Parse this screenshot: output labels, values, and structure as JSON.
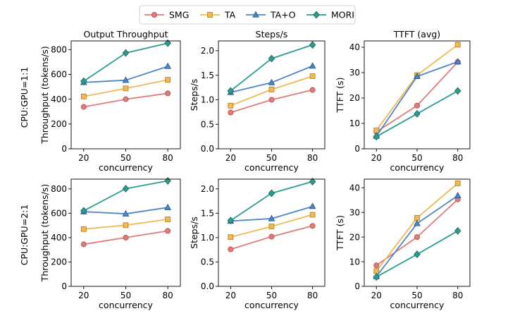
{
  "legend": {
    "entries": [
      {
        "name": "SMG",
        "color": "#e07b7b",
        "edge": "#b84a4a",
        "marker": "circle"
      },
      {
        "name": "TA",
        "color": "#f0b955",
        "edge": "#b07d1e",
        "marker": "square"
      },
      {
        "name": "TA+O",
        "color": "#4f87c6",
        "edge": "#27508a",
        "marker": "triangle"
      },
      {
        "name": "MORI",
        "color": "#2a9d8f",
        "edge": "#1b5f57",
        "marker": "diamond"
      }
    ],
    "placement": "top-center"
  },
  "row_labels": [
    "CPU:GPU=1:1",
    "CPU:GPU=2:1"
  ],
  "chart_data": [
    {
      "type": "line",
      "row": 0,
      "col": 0,
      "title": "Output Throughput",
      "xlabel": "concurrency",
      "ylabel": "Throughput (tokens/s)",
      "x": [
        "20",
        "50",
        "80"
      ],
      "ylim": [
        0,
        870
      ],
      "yticks": [
        0,
        200,
        400,
        600,
        800
      ],
      "series": [
        {
          "name": "SMG",
          "values": [
            338,
            400,
            447
          ]
        },
        {
          "name": "TA",
          "values": [
            422,
            487,
            556
          ]
        },
        {
          "name": "TA+O",
          "values": [
            535,
            553,
            665
          ]
        },
        {
          "name": "MORI",
          "values": [
            545,
            773,
            852
          ]
        }
      ]
    },
    {
      "type": "line",
      "row": 0,
      "col": 1,
      "title": "Steps/s",
      "xlabel": "concurrency",
      "ylabel": "Steps/s",
      "x": [
        "20",
        "50",
        "80"
      ],
      "ylim": [
        0,
        2.2
      ],
      "yticks": [
        0.0,
        0.5,
        1.0,
        1.5,
        2.0
      ],
      "tick_format": "0.0",
      "series": [
        {
          "name": "SMG",
          "values": [
            0.74,
            1.0,
            1.2
          ]
        },
        {
          "name": "TA",
          "values": [
            0.88,
            1.21,
            1.48
          ]
        },
        {
          "name": "TA+O",
          "values": [
            1.15,
            1.35,
            1.69
          ]
        },
        {
          "name": "MORI",
          "values": [
            1.18,
            1.84,
            2.12
          ]
        }
      ]
    },
    {
      "type": "line",
      "row": 0,
      "col": 2,
      "title": "TTFT (avg)",
      "xlabel": "concurrency",
      "ylabel": "TTFT (s)",
      "x": [
        "20",
        "50",
        "80"
      ],
      "ylim": [
        0,
        42.5
      ],
      "yticks": [
        0,
        10,
        20,
        30,
        40
      ],
      "series": [
        {
          "name": "SMG",
          "values": [
            6.7,
            17.0,
            34.2
          ]
        },
        {
          "name": "TA",
          "values": [
            7.3,
            29.0,
            41.0
          ]
        },
        {
          "name": "TA+O",
          "values": [
            5.0,
            28.5,
            34.3
          ]
        },
        {
          "name": "MORI",
          "values": [
            4.8,
            13.8,
            22.8
          ]
        }
      ]
    },
    {
      "type": "line",
      "row": 1,
      "col": 0,
      "title": "",
      "xlabel": "concurrency",
      "ylabel": "Throughput (tokens/s)",
      "x": [
        "20",
        "50",
        "80"
      ],
      "ylim": [
        0,
        880
      ],
      "yticks": [
        0,
        200,
        400,
        600,
        800
      ],
      "series": [
        {
          "name": "SMG",
          "values": [
            345,
            400,
            455
          ]
        },
        {
          "name": "TA",
          "values": [
            470,
            502,
            550
          ]
        },
        {
          "name": "TA+O",
          "values": [
            613,
            595,
            647
          ]
        },
        {
          "name": "MORI",
          "values": [
            620,
            802,
            866
          ]
        }
      ]
    },
    {
      "type": "line",
      "row": 1,
      "col": 1,
      "title": "",
      "xlabel": "concurrency",
      "ylabel": "Steps/s",
      "x": [
        "20",
        "50",
        "80"
      ],
      "ylim": [
        0,
        2.2
      ],
      "yticks": [
        0.0,
        0.5,
        1.0,
        1.5,
        2.0
      ],
      "tick_format": "0.0",
      "series": [
        {
          "name": "SMG",
          "values": [
            0.76,
            1.02,
            1.24
          ]
        },
        {
          "name": "TA",
          "values": [
            1.01,
            1.23,
            1.47
          ]
        },
        {
          "name": "TA+O",
          "values": [
            1.34,
            1.39,
            1.64
          ]
        },
        {
          "name": "MORI",
          "values": [
            1.35,
            1.91,
            2.15
          ]
        }
      ]
    },
    {
      "type": "line",
      "row": 1,
      "col": 2,
      "title": "",
      "xlabel": "concurrency",
      "ylabel": "TTFT (s)",
      "x": [
        "20",
        "50",
        "80"
      ],
      "ylim": [
        0,
        43.5
      ],
      "yticks": [
        0,
        10,
        20,
        30,
        40
      ],
      "series": [
        {
          "name": "SMG",
          "values": [
            8.5,
            20.0,
            35.3
          ]
        },
        {
          "name": "TA",
          "values": [
            6.2,
            27.8,
            41.8
          ]
        },
        {
          "name": "TA+O",
          "values": [
            4.0,
            25.5,
            36.8
          ]
        },
        {
          "name": "MORI",
          "values": [
            3.8,
            13.0,
            22.5
          ]
        }
      ]
    }
  ]
}
